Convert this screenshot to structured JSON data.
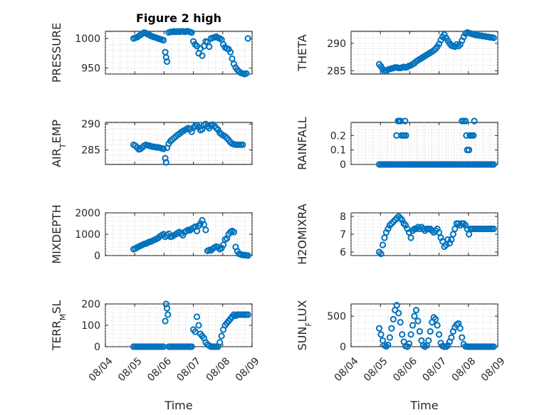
{
  "figure": {
    "title": "Figure 2 high",
    "marker_color": "#0072BD"
  },
  "chart_data": [
    {
      "type": "scatter",
      "title": "Figure 2 high",
      "ylabel": "PRESSURE",
      "xlabel": "",
      "ylim": [
        940,
        1012
      ],
      "yticks": [
        950,
        1000
      ],
      "ytick_labels": [
        "950",
        "1000"
      ],
      "xlim": [
        0,
        5
      ],
      "xticks": [
        1,
        2,
        3,
        4,
        5
      ],
      "xtick_labels": [],
      "grid": true,
      "minor_grid": true,
      "x": [
        0.96,
        1.02,
        1.08,
        1.14,
        1.2,
        1.26,
        1.32,
        1.38,
        1.44,
        1.5,
        1.56,
        1.62,
        1.68,
        1.74,
        1.8,
        1.86,
        1.92,
        1.98,
        2.04,
        2.07,
        2.1,
        2.16,
        2.22,
        2.28,
        2.34,
        2.4,
        2.46,
        2.52,
        2.58,
        2.64,
        2.7,
        2.76,
        2.82,
        2.88,
        2.94,
        3.0,
        3.06,
        3.12,
        3.18,
        3.24,
        3.3,
        3.36,
        3.42,
        3.48,
        3.54,
        3.6,
        3.66,
        3.72,
        3.78,
        3.84,
        3.9,
        3.96,
        4.02,
        4.08,
        4.14,
        4.2,
        4.26,
        4.32,
        4.38,
        4.44,
        4.5,
        4.56,
        4.62,
        4.68,
        4.74,
        4.8,
        4.86
      ],
      "y": [
        1000,
        1001,
        1002,
        1004,
        1006,
        1008,
        1010,
        1009,
        1007,
        1006,
        1004,
        1003,
        1002,
        1001,
        1000,
        999,
        998,
        997,
        977,
        968,
        961,
        1010,
        1011,
        1011,
        1012,
        1011,
        1012,
        1011,
        1012,
        1012,
        1011,
        1012,
        1012,
        1011,
        1010,
        995,
        990,
        987,
        975,
        983,
        971,
        987,
        995,
        994,
        986,
        1000,
        1001,
        1002,
        1003,
        1001,
        1000,
        998,
        990,
        985,
        983,
        982,
        977,
        966,
        957,
        951,
        947,
        944,
        942,
        941,
        940,
        941,
        1000
      ]
    },
    {
      "type": "scatter",
      "title": "",
      "ylabel": "THETA",
      "xlabel": "",
      "ylim": [
        284.4,
        292.2
      ],
      "yticks": [
        285,
        290
      ],
      "ytick_labels": [
        "285",
        "290"
      ],
      "xlim": [
        0,
        5
      ],
      "xticks": [
        1,
        2,
        3,
        4,
        5
      ],
      "xtick_labels": [],
      "grid": true,
      "minor_grid": true,
      "x": [
        0.96,
        1.02,
        1.08,
        1.14,
        1.2,
        1.26,
        1.32,
        1.38,
        1.44,
        1.5,
        1.56,
        1.62,
        1.68,
        1.74,
        1.8,
        1.86,
        1.92,
        1.98,
        2.04,
        2.1,
        2.16,
        2.22,
        2.28,
        2.34,
        2.4,
        2.46,
        2.52,
        2.58,
        2.64,
        2.7,
        2.76,
        2.82,
        2.88,
        2.94,
        3.0,
        3.06,
        3.12,
        3.18,
        3.24,
        3.3,
        3.36,
        3.42,
        3.48,
        3.54,
        3.6,
        3.66,
        3.72,
        3.78,
        3.84,
        3.9,
        3.96,
        4.02,
        4.08,
        4.14,
        4.2,
        4.26,
        4.32,
        4.38,
        4.44,
        4.5,
        4.56,
        4.62,
        4.68,
        4.74,
        4.8,
        4.86
      ],
      "y": [
        286.2,
        285.8,
        285.3,
        284.9,
        285.0,
        285.2,
        285.3,
        285.4,
        285.5,
        285.6,
        285.6,
        285.5,
        285.5,
        285.6,
        285.7,
        285.6,
        285.7,
        285.9,
        286.0,
        286.2,
        286.4,
        286.7,
        286.9,
        287.1,
        287.3,
        287.5,
        287.7,
        287.9,
        288.1,
        288.3,
        288.5,
        288.7,
        289.0,
        289.4,
        289.9,
        290.6,
        291.2,
        291.6,
        291.0,
        290.5,
        290.0,
        289.6,
        289.5,
        289.4,
        289.8,
        289.5,
        289.8,
        290.5,
        291.2,
        291.8,
        292.0,
        291.9,
        291.8,
        291.7,
        291.6,
        291.5,
        291.5,
        291.4,
        291.4,
        291.3,
        291.3,
        291.2,
        291.2,
        291.1,
        291.1,
        291.0
      ]
    },
    {
      "type": "scatter",
      "title": "",
      "ylabel": "AIR_TEMP",
      "xlabel": "",
      "ylim": [
        282.2,
        290.3
      ],
      "yticks": [
        285,
        290
      ],
      "ytick_labels": [
        "285",
        "290"
      ],
      "xlim": [
        0,
        5
      ],
      "xticks": [
        1,
        2,
        3,
        4,
        5
      ],
      "xtick_labels": [],
      "grid": true,
      "minor_grid": true,
      "x": [
        0.96,
        1.02,
        1.08,
        1.14,
        1.2,
        1.26,
        1.32,
        1.38,
        1.44,
        1.5,
        1.56,
        1.62,
        1.68,
        1.74,
        1.8,
        1.86,
        1.92,
        1.98,
        2.04,
        2.07,
        2.1,
        2.16,
        2.22,
        2.28,
        2.34,
        2.4,
        2.46,
        2.52,
        2.58,
        2.64,
        2.7,
        2.76,
        2.82,
        2.88,
        2.94,
        3.0,
        3.06,
        3.12,
        3.18,
        3.24,
        3.3,
        3.36,
        3.42,
        3.48,
        3.54,
        3.6,
        3.66,
        3.72,
        3.78,
        3.84,
        3.9,
        3.96,
        4.02,
        4.08,
        4.14,
        4.2,
        4.26,
        4.32,
        4.38,
        4.44,
        4.5,
        4.56,
        4.62,
        4.68
      ],
      "y": [
        286.0,
        285.8,
        285.5,
        285.1,
        285.2,
        285.5,
        285.8,
        286.0,
        285.9,
        285.8,
        285.7,
        285.6,
        285.6,
        285.5,
        285.5,
        285.4,
        285.3,
        285.2,
        283.4,
        282.6,
        285.4,
        286.2,
        286.7,
        287.0,
        287.3,
        287.6,
        287.9,
        288.1,
        288.4,
        288.6,
        288.8,
        289.0,
        289.2,
        289.0,
        288.5,
        289.3,
        289.6,
        289.8,
        289.4,
        288.8,
        289.0,
        289.8,
        290.0,
        289.5,
        289.2,
        289.7,
        289.9,
        289.6,
        289.2,
        288.9,
        288.3,
        288.0,
        287.8,
        287.6,
        287.3,
        286.9,
        286.5,
        286.2,
        286.1,
        286.0,
        286.0,
        286.0,
        286.0,
        286.0
      ]
    },
    {
      "type": "scatter",
      "title": "",
      "ylabel": "RAINFALL",
      "xlabel": "",
      "ylim": [
        0,
        0.29
      ],
      "yticks": [
        0,
        0.1,
        0.2
      ],
      "ytick_labels": [
        "0",
        "0.1",
        "0.2"
      ],
      "xlim": [
        0,
        5
      ],
      "xticks": [
        1,
        2,
        3,
        4,
        5
      ],
      "xtick_labels": [],
      "grid": true,
      "minor_grid": true,
      "x": [
        0.96,
        1.02,
        1.08,
        1.14,
        1.2,
        1.26,
        1.32,
        1.38,
        1.44,
        1.5,
        1.56,
        1.62,
        1.68,
        1.74,
        1.8,
        1.86,
        1.92,
        1.98,
        2.04,
        2.1,
        2.16,
        2.22,
        2.28,
        2.34,
        2.4,
        2.46,
        2.52,
        2.58,
        2.64,
        2.7,
        2.76,
        2.82,
        2.88,
        2.94,
        3.0,
        3.06,
        3.12,
        3.18,
        3.24,
        3.3,
        3.36,
        3.42,
        3.48,
        3.54,
        3.6,
        3.66,
        3.72,
        3.78,
        3.84,
        3.9,
        3.96,
        4.02,
        4.08,
        4.14,
        4.2,
        4.26,
        4.32,
        4.38,
        4.44,
        4.5,
        4.56,
        4.62,
        4.68,
        4.74,
        4.8,
        4.86,
        1.55,
        1.6,
        1.63,
        1.66,
        1.69,
        1.72,
        1.78,
        1.81,
        1.84,
        1.87,
        3.78,
        3.84,
        3.9,
        3.93,
        3.96,
        4.02,
        4.05,
        4.08,
        4.14,
        4.17,
        4.2
      ],
      "y": [
        0,
        0,
        0,
        0,
        0,
        0,
        0,
        0,
        0,
        0,
        0,
        0,
        0,
        0,
        0,
        0,
        0,
        0,
        0,
        0,
        0,
        0,
        0,
        0,
        0,
        0,
        0,
        0,
        0,
        0,
        0,
        0,
        0,
        0,
        0,
        0,
        0,
        0,
        0,
        0,
        0,
        0,
        0,
        0,
        0,
        0,
        0,
        0,
        0,
        0,
        0,
        0,
        0,
        0,
        0,
        0,
        0,
        0,
        0,
        0,
        0,
        0,
        0,
        0,
        0,
        0,
        0.2,
        0.3,
        0.3,
        0.3,
        0.3,
        0.2,
        0.2,
        0.2,
        0.3,
        0.2,
        0.3,
        0.3,
        0.3,
        0.2,
        0.1,
        0.1,
        0.2,
        0.2,
        0.2,
        0.2,
        0.3
      ]
    },
    {
      "type": "scatter",
      "title": "",
      "ylabel": "MIXDEPTH",
      "xlabel": "",
      "ylim": [
        0,
        2000
      ],
      "yticks": [
        0,
        1000,
        2000
      ],
      "ytick_labels": [
        "0",
        "1000",
        "2000"
      ],
      "xlim": [
        0,
        5
      ],
      "xticks": [
        1,
        2,
        3,
        4,
        5
      ],
      "xtick_labels": [],
      "grid": true,
      "minor_grid": true,
      "x": [
        0.96,
        1.02,
        1.08,
        1.14,
        1.2,
        1.26,
        1.32,
        1.38,
        1.44,
        1.5,
        1.56,
        1.62,
        1.68,
        1.74,
        1.8,
        1.86,
        1.92,
        1.98,
        2.04,
        2.1,
        2.16,
        2.22,
        2.28,
        2.34,
        2.4,
        2.46,
        2.52,
        2.58,
        2.64,
        2.7,
        2.76,
        2.82,
        2.88,
        2.94,
        3.0,
        3.06,
        3.12,
        3.18,
        3.24,
        3.3,
        3.36,
        3.42,
        3.48,
        3.54,
        3.6,
        3.66,
        3.72,
        3.78,
        3.84,
        3.9,
        3.96,
        4.02,
        4.08,
        4.14,
        4.2,
        4.26,
        4.32,
        4.38,
        4.44,
        4.5,
        4.56,
        4.62,
        4.68,
        4.74,
        4.8,
        4.86
      ],
      "y": [
        300,
        330,
        380,
        420,
        460,
        500,
        540,
        560,
        600,
        640,
        660,
        700,
        740,
        780,
        820,
        900,
        950,
        1000,
        880,
        950,
        1020,
        880,
        900,
        950,
        1000,
        1050,
        1100,
        1020,
        950,
        1100,
        1150,
        1200,
        1180,
        1250,
        1300,
        1350,
        1150,
        1400,
        1500,
        1650,
        1450,
        1200,
        220,
        260,
        240,
        320,
        380,
        420,
        400,
        300,
        350,
        500,
        750,
        800,
        1000,
        1100,
        1150,
        1100,
        400,
        200,
        80,
        50,
        30,
        20,
        10,
        0
      ]
    },
    {
      "type": "scatter",
      "title": "",
      "ylabel": "H2OMIXRA",
      "xlabel": "",
      "ylim": [
        5.8,
        8.2
      ],
      "yticks": [
        6,
        7,
        8
      ],
      "ytick_labels": [
        "6",
        "7",
        "8"
      ],
      "xlim": [
        0,
        5
      ],
      "xticks": [
        1,
        2,
        3,
        4,
        5
      ],
      "xtick_labels": [],
      "grid": true,
      "minor_grid": true,
      "x": [
        0.96,
        1.02,
        1.08,
        1.14,
        1.2,
        1.26,
        1.32,
        1.38,
        1.44,
        1.5,
        1.56,
        1.62,
        1.68,
        1.74,
        1.8,
        1.86,
        1.92,
        1.98,
        2.04,
        2.1,
        2.16,
        2.22,
        2.28,
        2.34,
        2.4,
        2.46,
        2.52,
        2.58,
        2.64,
        2.7,
        2.76,
        2.82,
        2.88,
        2.94,
        3.0,
        3.06,
        3.12,
        3.18,
        3.24,
        3.3,
        3.36,
        3.42,
        3.48,
        3.54,
        3.6,
        3.66,
        3.72,
        3.78,
        3.84,
        3.9,
        3.96,
        4.02,
        4.08,
        4.14,
        4.2,
        4.26,
        4.32,
        4.38,
        4.44,
        4.5,
        4.56,
        4.62,
        4.68,
        4.74,
        4.8,
        4.86
      ],
      "y": [
        6.0,
        5.9,
        6.4,
        6.8,
        7.1,
        7.3,
        7.5,
        7.6,
        7.7,
        7.8,
        7.9,
        8.0,
        7.9,
        7.8,
        7.6,
        7.5,
        7.3,
        7.1,
        6.8,
        7.2,
        7.3,
        7.3,
        7.4,
        7.3,
        7.4,
        7.3,
        7.2,
        7.3,
        7.3,
        7.3,
        7.2,
        7.1,
        7.2,
        7.3,
        7.1,
        6.8,
        6.6,
        6.3,
        6.4,
        6.7,
        6.5,
        6.7,
        7.0,
        7.3,
        7.6,
        7.6,
        7.5,
        7.6,
        7.6,
        7.5,
        7.3,
        7.0,
        7.3,
        7.3,
        7.3,
        7.3,
        7.3,
        7.3,
        7.3,
        7.3,
        7.3,
        7.3,
        7.3,
        7.3,
        7.3,
        7.3
      ]
    },
    {
      "type": "scatter",
      "title": "",
      "ylabel": "TERR_MSL",
      "xlabel": "Time",
      "ylim": [
        0,
        200
      ],
      "yticks": [
        0,
        100,
        200
      ],
      "ytick_labels": [
        "0",
        "100",
        "200"
      ],
      "xlim": [
        0,
        5
      ],
      "xticks": [
        0,
        1,
        2,
        3,
        4,
        5
      ],
      "xtick_labels": [
        "08/04",
        "08/05",
        "08/06",
        "08/07",
        "08/08",
        "08/09"
      ],
      "grid": true,
      "minor_grid": true,
      "x": [
        0.96,
        1.02,
        1.08,
        1.14,
        1.2,
        1.26,
        1.32,
        1.38,
        1.44,
        1.5,
        1.56,
        1.62,
        1.68,
        1.74,
        1.8,
        1.86,
        1.92,
        1.98,
        2.04,
        2.07,
        2.1,
        2.13,
        2.16,
        2.22,
        2.28,
        2.34,
        2.4,
        2.46,
        2.52,
        2.58,
        2.64,
        2.7,
        2.76,
        2.82,
        2.88,
        2.94,
        3.0,
        3.06,
        3.12,
        3.18,
        3.24,
        3.3,
        3.36,
        3.42,
        3.48,
        3.54,
        3.6,
        3.66,
        3.72,
        3.78,
        3.84,
        3.9,
        3.96,
        4.02,
        4.08,
        4.14,
        4.2,
        4.26,
        4.32,
        4.38,
        4.44,
        4.5,
        4.56,
        4.62,
        4.68,
        4.74,
        4.8,
        4.86
      ],
      "y": [
        0,
        0,
        0,
        0,
        0,
        0,
        0,
        0,
        0,
        0,
        0,
        0,
        0,
        0,
        0,
        0,
        0,
        0,
        120,
        200,
        180,
        150,
        0,
        0,
        0,
        0,
        0,
        0,
        0,
        0,
        0,
        0,
        0,
        0,
        0,
        0,
        80,
        70,
        140,
        100,
        60,
        50,
        40,
        20,
        10,
        5,
        0,
        0,
        0,
        0,
        0,
        20,
        50,
        80,
        100,
        110,
        120,
        130,
        140,
        150,
        145,
        150,
        150,
        150,
        150,
        150,
        150,
        150
      ]
    },
    {
      "type": "scatter",
      "title": "",
      "ylabel": "SUN_FLUX",
      "xlabel": "Time",
      "ylim": [
        0,
        700
      ],
      "yticks": [
        0,
        500
      ],
      "ytick_labels": [
        "0",
        "500"
      ],
      "xlim": [
        0,
        5
      ],
      "xticks": [
        0,
        1,
        2,
        3,
        4,
        5
      ],
      "xtick_labels": [
        "08/04",
        "08/05",
        "08/06",
        "08/07",
        "08/08",
        "08/09"
      ],
      "grid": true,
      "minor_grid": true,
      "x": [
        0.96,
        1.02,
        1.08,
        1.14,
        1.2,
        1.26,
        1.32,
        1.38,
        1.44,
        1.5,
        1.56,
        1.62,
        1.68,
        1.74,
        1.8,
        1.86,
        1.92,
        1.98,
        2.04,
        2.1,
        2.16,
        2.22,
        2.28,
        2.34,
        2.4,
        2.46,
        2.52,
        2.58,
        2.64,
        2.7,
        2.76,
        2.82,
        2.88,
        2.94,
        3.0,
        3.06,
        3.12,
        3.18,
        3.24,
        3.3,
        3.36,
        3.42,
        3.48,
        3.54,
        3.6,
        3.66,
        3.72,
        3.78,
        3.84,
        3.9,
        3.96,
        4.02,
        4.08,
        4.14,
        4.2,
        4.26,
        4.32,
        4.38,
        4.44,
        4.5,
        4.56,
        4.62,
        4.68,
        4.74,
        4.8,
        4.86
      ],
      "y": [
        300,
        200,
        100,
        20,
        5,
        30,
        150,
        300,
        450,
        600,
        680,
        550,
        400,
        200,
        80,
        10,
        0,
        50,
        200,
        350,
        500,
        600,
        420,
        250,
        100,
        20,
        0,
        20,
        100,
        250,
        400,
        480,
        450,
        350,
        200,
        60,
        10,
        0,
        0,
        20,
        80,
        150,
        250,
        320,
        360,
        380,
        300,
        150,
        40,
        5,
        0,
        0,
        0,
        0,
        0,
        0,
        0,
        0,
        0,
        0,
        0,
        0,
        0,
        0,
        0,
        0
      ]
    }
  ]
}
